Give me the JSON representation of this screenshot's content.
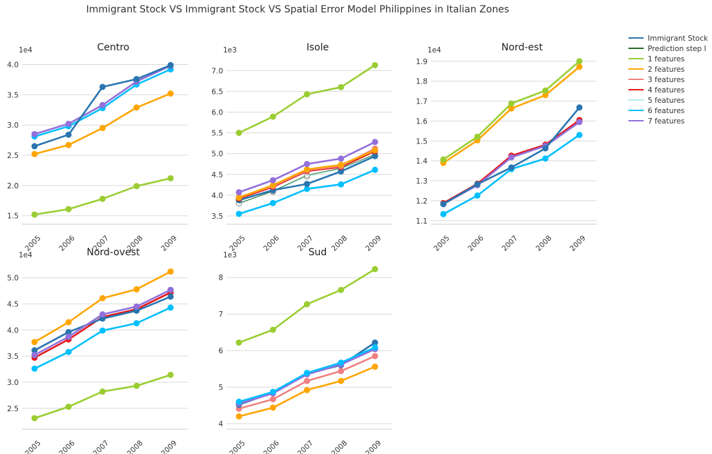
{
  "figure": {
    "title": "Immigrant Stock VS Immigrant Stock VS Spatial Error Model Philippines in Italian Zones"
  },
  "legend": {
    "entries": [
      {
        "name": "Immigrant Stock",
        "color": "#2a75b0"
      },
      {
        "name": "Prediction step I",
        "color": "#1f6b2a"
      },
      {
        "name": "1 features",
        "color": "#9acd32"
      },
      {
        "name": "2 features",
        "color": "#ffa500"
      },
      {
        "name": "3 features",
        "color": "#f08080"
      },
      {
        "name": "4 features",
        "color": "#e41a1c"
      },
      {
        "name": "5 features",
        "color": "#afeeee"
      },
      {
        "name": "6 features",
        "color": "#00bfff"
      },
      {
        "name": "7 features",
        "color": "#9370db"
      }
    ]
  },
  "chart_data": [
    {
      "type": "line",
      "title": "Centro",
      "multiplier": "1e4",
      "x": [
        "2005",
        "2006",
        "2007",
        "2008",
        "2009"
      ],
      "ylim": [
        1.36,
        4.12
      ],
      "yticks": [
        "1.5",
        "2.0",
        "2.5",
        "3.0",
        "3.5",
        "4.0"
      ],
      "grid": true,
      "series": [
        {
          "name": "1 features",
          "values": [
            1.52,
            1.61,
            1.78,
            1.99,
            2.12
          ]
        },
        {
          "name": "2 features",
          "values": [
            2.52,
            2.67,
            2.95,
            3.29,
            3.52
          ]
        },
        {
          "name": "6 features",
          "values": [
            2.81,
            2.98,
            3.28,
            3.67,
            3.92
          ]
        },
        {
          "name": "7 features",
          "values": [
            2.85,
            3.02,
            3.33,
            3.72,
            3.98
          ]
        },
        {
          "name": "Immigrant Stock",
          "values": [
            2.65,
            2.84,
            3.63,
            3.76,
            3.99
          ]
        }
      ]
    },
    {
      "type": "line",
      "title": "Isole",
      "multiplier": "1e3",
      "x": [
        "2005",
        "2006",
        "2007",
        "2008",
        "2009"
      ],
      "ylim": [
        3.3,
        7.32
      ],
      "yticks": [
        "3.5",
        "4.0",
        "4.5",
        "5.0",
        "5.5",
        "6.0",
        "6.5",
        "7.0"
      ],
      "grid": true,
      "series": [
        {
          "name": "5 features",
          "values": [
            3.82,
            4.08,
            4.45,
            4.62,
            4.96
          ]
        },
        {
          "name": "Prediction step I",
          "values": [
            3.8,
            4.1,
            4.48,
            4.65,
            4.98
          ]
        },
        {
          "name": "6 features",
          "values": [
            3.55,
            3.81,
            4.15,
            4.26,
            4.61
          ]
        },
        {
          "name": "Immigrant Stock",
          "values": [
            3.88,
            4.12,
            4.27,
            4.57,
            4.94
          ]
        },
        {
          "name": "4 features",
          "values": [
            3.92,
            4.2,
            4.58,
            4.68,
            5.06
          ]
        },
        {
          "name": "3 features",
          "values": [
            3.95,
            4.22,
            4.6,
            4.7,
            5.12
          ]
        },
        {
          "name": "2 features",
          "values": [
            3.94,
            4.24,
            4.62,
            4.73,
            5.08
          ]
        },
        {
          "name": "7 features",
          "values": [
            4.07,
            4.36,
            4.75,
            4.88,
            5.28
          ]
        },
        {
          "name": "1 features",
          "values": [
            5.5,
            5.89,
            6.43,
            6.6,
            7.13
          ]
        }
      ]
    },
    {
      "type": "line",
      "title": "Nord-est",
      "multiplier": "1e4",
      "x": [
        "2005",
        "2006",
        "2007",
        "2008",
        "2009"
      ],
      "ylim": [
        1.082,
        1.92
      ],
      "yticks": [
        "1.1",
        "1.2",
        "1.3",
        "1.4",
        "1.5",
        "1.6",
        "1.7",
        "1.8",
        "1.9"
      ],
      "grid": true,
      "series": [
        {
          "name": "6 features",
          "values": [
            1.133,
            1.226,
            1.359,
            1.412,
            1.53
          ]
        },
        {
          "name": "4 features",
          "values": [
            1.188,
            1.285,
            1.426,
            1.481,
            1.605
          ]
        },
        {
          "name": "7 features",
          "values": [
            1.183,
            1.278,
            1.418,
            1.475,
            1.595
          ]
        },
        {
          "name": "Immigrant Stock",
          "values": [
            1.183,
            1.283,
            1.367,
            1.463,
            1.668
          ]
        },
        {
          "name": "2 features",
          "values": [
            1.39,
            1.503,
            1.663,
            1.73,
            1.872
          ]
        },
        {
          "name": "1 features",
          "values": [
            1.407,
            1.521,
            1.688,
            1.753,
            1.9
          ]
        }
      ]
    },
    {
      "type": "line",
      "title": "Nord-ovest",
      "multiplier": "1e4",
      "x": [
        "2005",
        "2006",
        "2007",
        "2008",
        "2009"
      ],
      "ylim": [
        2.1,
        5.3
      ],
      "yticks": [
        "2.5",
        "3.0",
        "3.5",
        "4.0",
        "4.5",
        "5.0"
      ],
      "grid": true,
      "series": [
        {
          "name": "1 features",
          "values": [
            2.31,
            2.53,
            2.82,
            2.93,
            3.14
          ]
        },
        {
          "name": "6 features",
          "values": [
            3.26,
            3.58,
            3.99,
            4.13,
            4.43
          ]
        },
        {
          "name": "4 features",
          "values": [
            3.47,
            3.82,
            4.25,
            4.4,
            4.72
          ]
        },
        {
          "name": "Immigrant Stock",
          "values": [
            3.61,
            3.96,
            4.22,
            4.37,
            4.64
          ]
        },
        {
          "name": "7 features",
          "values": [
            3.52,
            3.87,
            4.3,
            4.45,
            4.77
          ]
        },
        {
          "name": "2 features",
          "values": [
            3.77,
            4.15,
            4.61,
            4.78,
            5.12
          ]
        }
      ]
    },
    {
      "type": "line",
      "title": "Sud",
      "multiplier": "1e3",
      "x": [
        "2005",
        "2006",
        "2007",
        "2008",
        "2009"
      ],
      "ylim": [
        3.85,
        8.42
      ],
      "yticks": [
        "4",
        "5",
        "6",
        "7",
        "8"
      ],
      "grid": true,
      "series": [
        {
          "name": "2 features",
          "values": [
            4.2,
            4.44,
            4.92,
            5.17,
            5.56
          ]
        },
        {
          "name": "3 features",
          "values": [
            4.41,
            4.67,
            5.17,
            5.44,
            5.85
          ]
        },
        {
          "name": "Immigrant Stock",
          "values": [
            4.52,
            4.85,
            5.37,
            5.6,
            6.22
          ]
        },
        {
          "name": "7 features",
          "values": [
            4.55,
            4.83,
            5.35,
            5.62,
            6.04
          ]
        },
        {
          "name": "6 features",
          "values": [
            4.6,
            4.87,
            5.39,
            5.67,
            6.09
          ]
        },
        {
          "name": "1 features",
          "values": [
            6.22,
            6.57,
            7.27,
            7.66,
            8.23
          ]
        }
      ]
    }
  ]
}
